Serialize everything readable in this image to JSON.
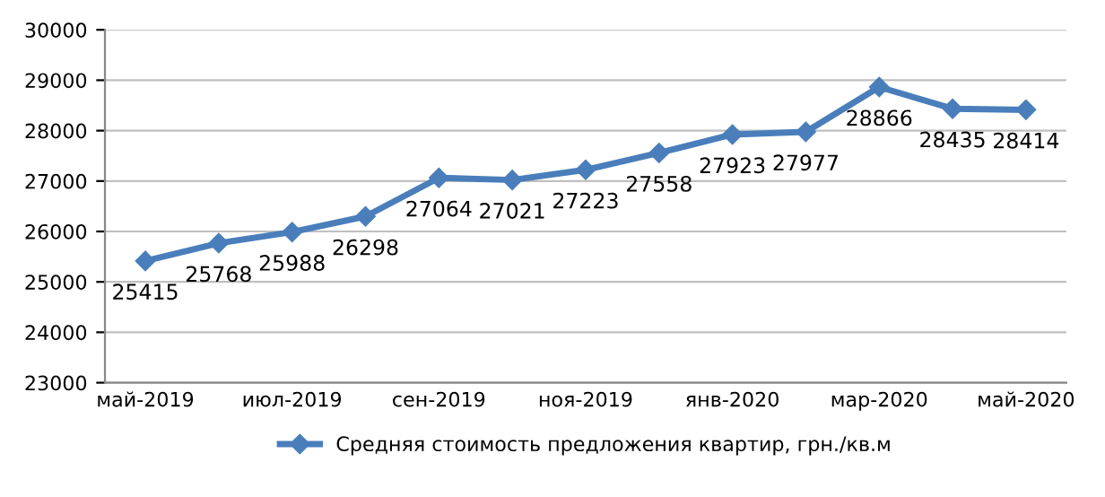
{
  "chart_data": {
    "type": "line",
    "categories": [
      "май-2019",
      null,
      "июл-2019",
      null,
      "сен-2019",
      null,
      "ноя-2019",
      null,
      "янв-2020",
      null,
      "мар-2020",
      null,
      "май-2020"
    ],
    "series": [
      {
        "name": "Средняя стоимость предложения квартир, грн./кв.м",
        "color": "#4a7ebb",
        "values": [
          25415,
          25768,
          25988,
          26298,
          27064,
          27021,
          27223,
          27558,
          27923,
          27977,
          28866,
          28435,
          28414
        ]
      }
    ],
    "ylim": [
      23000,
      30000
    ],
    "yticks": [
      23000,
      24000,
      25000,
      26000,
      27000,
      28000,
      29000,
      30000
    ],
    "grid": "y",
    "legend": "bottom",
    "marker": "diamond",
    "line_style": "solid",
    "data_labels": true
  }
}
